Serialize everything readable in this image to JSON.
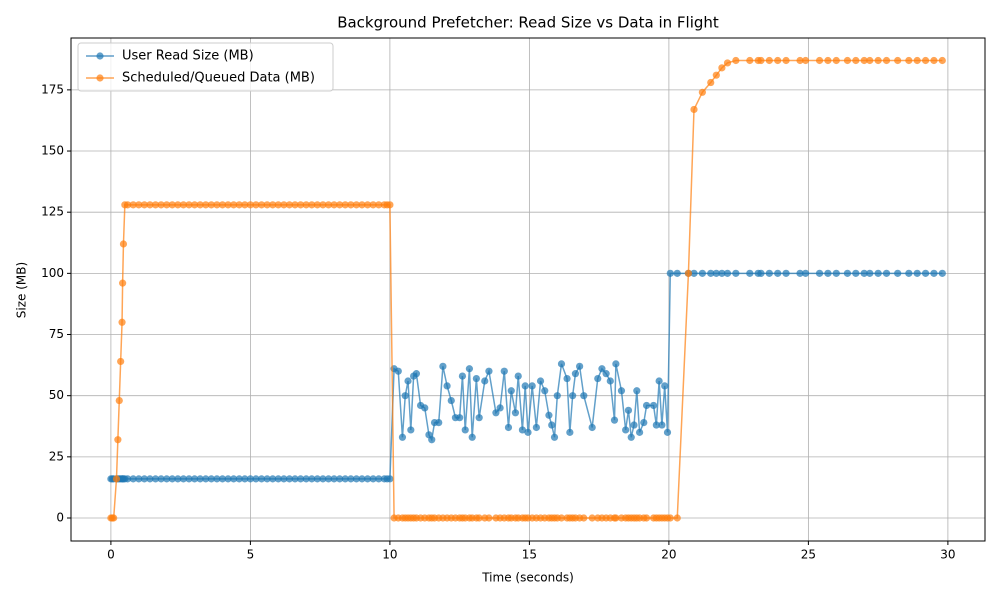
{
  "chart_data": {
    "type": "line",
    "title": "Background Prefetcher: Read Size vs Data in Flight",
    "x_label": "Time (seconds)",
    "y_label": "Size (MB)",
    "x": [
      0,
      0.05,
      0.1,
      0.2,
      0.25,
      0.3,
      0.35,
      0.4,
      0.42,
      0.45,
      0.5,
      0.6,
      0.8,
      1,
      1.2,
      1.4,
      1.6,
      1.8,
      2,
      2.2,
      2.4,
      2.6,
      2.8,
      3,
      3.2,
      3.4,
      3.6,
      3.8,
      4,
      4.2,
      4.4,
      4.6,
      4.8,
      5,
      5.2,
      5.4,
      5.6,
      5.8,
      6,
      6.2,
      6.4,
      6.6,
      6.8,
      7,
      7.2,
      7.4,
      7.6,
      7.8,
      8,
      8.2,
      8.4,
      8.6,
      8.8,
      9,
      9.2,
      9.4,
      9.6,
      9.8,
      9.9,
      10,
      10.15,
      10.3,
      10.45,
      10.55,
      10.65,
      10.75,
      10.85,
      10.95,
      11.1,
      11.25,
      11.4,
      11.5,
      11.6,
      11.75,
      11.9,
      12.05,
      12.2,
      12.35,
      12.5,
      12.6,
      12.7,
      12.85,
      12.95,
      13.1,
      13.2,
      13.4,
      13.55,
      13.8,
      13.95,
      14.1,
      14.25,
      14.35,
      14.5,
      14.6,
      14.75,
      14.85,
      14.95,
      15.1,
      15.25,
      15.4,
      15.55,
      15.7,
      15.8,
      15.9,
      16,
      16.15,
      16.35,
      16.45,
      16.55,
      16.65,
      16.8,
      16.95,
      17.25,
      17.45,
      17.6,
      17.75,
      17.9,
      18.05,
      18.1,
      18.3,
      18.45,
      18.55,
      18.65,
      18.75,
      18.85,
      18.95,
      19.1,
      19.2,
      19.45,
      19.55,
      19.65,
      19.75,
      19.85,
      19.95,
      20.05,
      20.3,
      20.7,
      20.9,
      21.2,
      21.5,
      21.7,
      21.9,
      22.1,
      22.4,
      22.9,
      23.2,
      23.3,
      23.6,
      23.9,
      24.2,
      24.7,
      24.9,
      25.4,
      25.7,
      26,
      26.4,
      26.7,
      27,
      27.2,
      27.5,
      27.8,
      28.2,
      28.6,
      28.9,
      29.2,
      29.5,
      29.8
    ],
    "series": [
      {
        "name": "User Read Size (MB)",
        "color": "#1f77b4",
        "values": [
          16,
          16,
          16,
          16,
          16,
          16,
          16,
          16,
          16,
          16,
          16,
          16,
          16,
          16,
          16,
          16,
          16,
          16,
          16,
          16,
          16,
          16,
          16,
          16,
          16,
          16,
          16,
          16,
          16,
          16,
          16,
          16,
          16,
          16,
          16,
          16,
          16,
          16,
          16,
          16,
          16,
          16,
          16,
          16,
          16,
          16,
          16,
          16,
          16,
          16,
          16,
          16,
          16,
          16,
          16,
          16,
          16,
          16,
          16,
          16,
          61,
          60,
          33,
          50,
          56,
          36,
          58,
          59,
          46,
          45,
          34,
          32,
          39,
          39,
          62,
          54,
          48,
          41,
          41,
          58,
          36,
          61,
          33,
          57,
          41,
          56,
          60,
          43,
          45,
          60,
          37,
          52,
          43,
          58,
          36,
          54,
          35,
          54,
          37,
          56,
          52,
          42,
          38,
          33,
          50,
          63,
          57,
          35,
          50,
          59,
          62,
          50,
          37,
          57,
          61,
          59,
          56,
          40,
          63,
          52,
          36,
          44,
          33,
          38,
          52,
          35,
          39,
          46,
          46,
          38,
          56,
          38,
          54,
          35,
          100,
          100,
          100,
          100,
          100,
          100,
          100,
          100,
          100,
          100,
          100,
          100,
          100,
          100,
          100,
          100,
          100,
          100,
          100,
          100,
          100,
          100,
          100,
          100,
          100,
          100,
          100,
          100,
          100,
          100,
          100,
          100,
          100
        ]
      },
      {
        "name": "Scheduled/Queued Data (MB)",
        "color": "#ff7f0e",
        "values": [
          0,
          0,
          0,
          16,
          32,
          48,
          64,
          80,
          96,
          112,
          128,
          128,
          128,
          128,
          128,
          128,
          128,
          128,
          128,
          128,
          128,
          128,
          128,
          128,
          128,
          128,
          128,
          128,
          128,
          128,
          128,
          128,
          128,
          128,
          128,
          128,
          128,
          128,
          128,
          128,
          128,
          128,
          128,
          128,
          128,
          128,
          128,
          128,
          128,
          128,
          128,
          128,
          128,
          128,
          128,
          128,
          128,
          128,
          128,
          128,
          0,
          0,
          0,
          0,
          0,
          0,
          0,
          0,
          0,
          0,
          0,
          0,
          0,
          0,
          0,
          0,
          0,
          0,
          0,
          0,
          0,
          0,
          0,
          0,
          0,
          0,
          0,
          0,
          0,
          0,
          0,
          0,
          0,
          0,
          0,
          0,
          0,
          0,
          0,
          0,
          0,
          0,
          0,
          0,
          0,
          0,
          0,
          0,
          0,
          0,
          0,
          0,
          0,
          0,
          0,
          0,
          0,
          0,
          0,
          0,
          0,
          0,
          0,
          0,
          0,
          0,
          0,
          0,
          0,
          0,
          0,
          0,
          0,
          0,
          0,
          0,
          100,
          167,
          174,
          178,
          181,
          184,
          186,
          187,
          187,
          187,
          187,
          187,
          187,
          187,
          187,
          187,
          187,
          187,
          187,
          187,
          187,
          187,
          187,
          187,
          187,
          187,
          187,
          187,
          187,
          187,
          187
        ]
      }
    ],
    "xlim": [
      -1.43,
      31.33
    ],
    "xticks": [
      0,
      5,
      10,
      15,
      20,
      25,
      30
    ],
    "ylim": [
      -9.4,
      196.2
    ],
    "yticks": [
      0,
      25,
      50,
      75,
      100,
      125,
      150,
      175
    ],
    "grid": true,
    "legend": "upper-left"
  }
}
